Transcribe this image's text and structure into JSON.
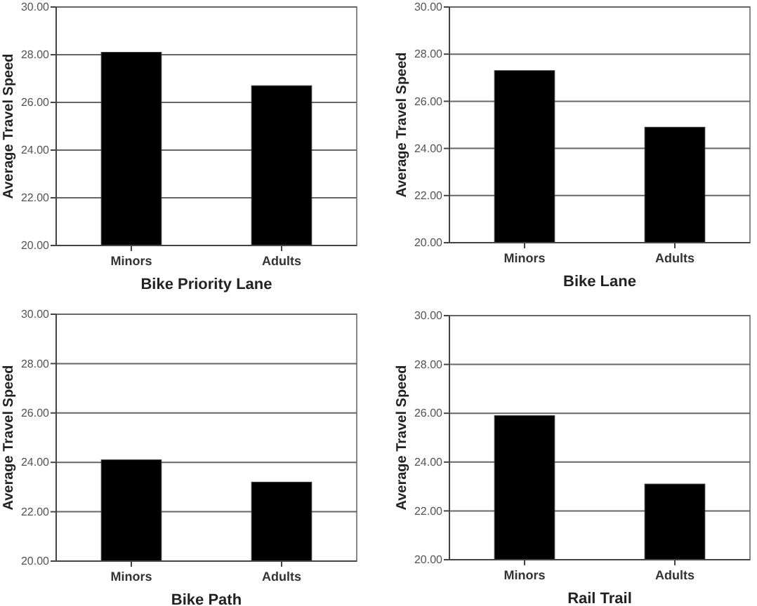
{
  "chart_data": [
    {
      "type": "bar",
      "xlabel": "Bike Priority Lane",
      "ylabel": "Average Travel Speed",
      "categories": [
        "Minors",
        "Adults"
      ],
      "values": [
        28.1,
        26.7
      ],
      "color": "#000000",
      "ylim": [
        20,
        30
      ],
      "yticks": [
        {
          "value": 20,
          "label": "20.00"
        },
        {
          "value": 22,
          "label": "22.00"
        },
        {
          "value": 24,
          "label": "24.00"
        },
        {
          "value": 26,
          "label": "26.00"
        },
        {
          "value": 28,
          "label": "28.00"
        },
        {
          "value": 30,
          "label": "30.00"
        }
      ],
      "grid": "y"
    },
    {
      "type": "bar",
      "xlabel": "Bike Lane",
      "ylabel": "Average Travel Speed",
      "categories": [
        "Minors",
        "Adults"
      ],
      "values": [
        27.3,
        24.9
      ],
      "color": "#000000",
      "ylim": [
        20,
        30
      ],
      "yticks": [
        {
          "value": 20,
          "label": "20.00"
        },
        {
          "value": 22,
          "label": "22.00"
        },
        {
          "value": 24,
          "label": "24.00"
        },
        {
          "value": 26,
          "label": "26.00"
        },
        {
          "value": 28,
          "label": "28.00"
        },
        {
          "value": 30,
          "label": "30.00"
        }
      ],
      "grid": "y"
    },
    {
      "type": "bar",
      "xlabel": "Bike Path",
      "ylabel": "Average Travel Speed",
      "categories": [
        "Minors",
        "Adults"
      ],
      "values": [
        24.1,
        23.2
      ],
      "color": "#000000",
      "ylim": [
        20,
        30
      ],
      "yticks": [
        {
          "value": 20,
          "label": "20.00"
        },
        {
          "value": 22,
          "label": "22.00"
        },
        {
          "value": 24,
          "label": "24.00"
        },
        {
          "value": 26,
          "label": "26.00"
        },
        {
          "value": 28,
          "label": "28.00"
        },
        {
          "value": 30,
          "label": "30.00"
        }
      ],
      "grid": "y"
    },
    {
      "type": "bar",
      "xlabel": "Rail Trail",
      "ylabel": "Average Travel Speed",
      "categories": [
        "Minors",
        "Adults"
      ],
      "values": [
        25.9,
        23.1
      ],
      "color": "#000000",
      "ylim": [
        20,
        30
      ],
      "yticks": [
        {
          "value": 20,
          "label": "20.00"
        },
        {
          "value": 22,
          "label": "22.00"
        },
        {
          "value": 24,
          "label": "24.00"
        },
        {
          "value": 26,
          "label": "26.00"
        },
        {
          "value": 28,
          "label": "28.00"
        },
        {
          "value": 30,
          "label": "30.00"
        }
      ],
      "grid": "y"
    }
  ]
}
